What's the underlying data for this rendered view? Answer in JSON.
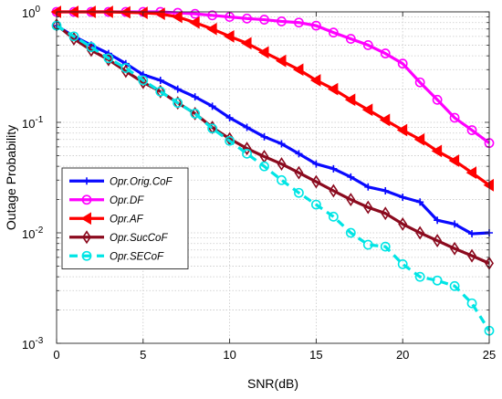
{
  "chart_data": {
    "type": "line",
    "xlabel": "SNR(dB)",
    "ylabel": "Outage Probability",
    "xlim": [
      0,
      25
    ],
    "ylim": [
      0.001,
      1
    ],
    "yscale": "log",
    "x_ticks": [
      0,
      5,
      10,
      15,
      20,
      25
    ],
    "x_tick_labels": [
      "0",
      "5",
      "10",
      "15",
      "20",
      "25"
    ],
    "y_ticks": [
      {
        "value": 0.001,
        "base": "10",
        "exp": "-3"
      },
      {
        "value": 0.01,
        "base": "10",
        "exp": "-2"
      },
      {
        "value": 0.1,
        "base": "10",
        "exp": "-1"
      },
      {
        "value": 1,
        "base": "10",
        "exp": "0"
      }
    ],
    "grid": true,
    "legend_position": "left-middle",
    "x": [
      0,
      1,
      2,
      3,
      4,
      5,
      6,
      7,
      8,
      9,
      10,
      11,
      12,
      13,
      14,
      15,
      16,
      17,
      18,
      19,
      20,
      21,
      22,
      23,
      24,
      25
    ],
    "series": [
      {
        "name": "Opr.Orig.CoF",
        "color": "#0a0aff",
        "marker": "plus",
        "dash": false,
        "values": [
          0.75,
          0.6,
          0.5,
          0.42,
          0.34,
          0.27,
          0.24,
          0.2,
          0.17,
          0.14,
          0.11,
          0.09,
          0.074,
          0.064,
          0.052,
          0.042,
          0.038,
          0.032,
          0.026,
          0.024,
          0.021,
          0.019,
          0.013,
          0.012,
          0.0098,
          0.01
        ]
      },
      {
        "name": "Opr.DF",
        "color": "#ff00ff",
        "marker": "circle",
        "dash": false,
        "values": [
          1,
          1,
          1,
          1,
          1,
          1,
          1,
          0.98,
          0.96,
          0.93,
          0.9,
          0.87,
          0.85,
          0.82,
          0.8,
          0.75,
          0.65,
          0.57,
          0.5,
          0.42,
          0.34,
          0.23,
          0.16,
          0.11,
          0.085,
          0.065
        ]
      },
      {
        "name": "Opr.AF",
        "color": "#ff0000",
        "marker": "triangle-left",
        "dash": false,
        "values": [
          1,
          1,
          1,
          1,
          0.99,
          0.98,
          0.96,
          0.9,
          0.8,
          0.7,
          0.6,
          0.52,
          0.43,
          0.36,
          0.3,
          0.24,
          0.2,
          0.16,
          0.13,
          0.105,
          0.085,
          0.07,
          0.055,
          0.045,
          0.035,
          0.027
        ]
      },
      {
        "name": "Opr.SucCoF",
        "color": "#8b0a1e",
        "marker": "diamond",
        "dash": false,
        "values": [
          0.76,
          0.57,
          0.45,
          0.37,
          0.29,
          0.23,
          0.19,
          0.15,
          0.12,
          0.09,
          0.071,
          0.058,
          0.049,
          0.042,
          0.035,
          0.029,
          0.024,
          0.02,
          0.017,
          0.015,
          0.012,
          0.01,
          0.0085,
          0.0072,
          0.0062,
          0.0053
        ]
      },
      {
        "name": "Opr.SECoF",
        "color": "#00e5e5",
        "marker": "circle",
        "dash": true,
        "values": [
          0.75,
          0.6,
          0.48,
          0.38,
          0.31,
          0.24,
          0.19,
          0.15,
          0.12,
          0.088,
          0.068,
          0.052,
          0.04,
          0.03,
          0.023,
          0.018,
          0.014,
          0.01,
          0.0078,
          0.0075,
          0.0052,
          0.004,
          0.0037,
          0.0033,
          0.0023,
          0.0013
        ]
      }
    ]
  }
}
